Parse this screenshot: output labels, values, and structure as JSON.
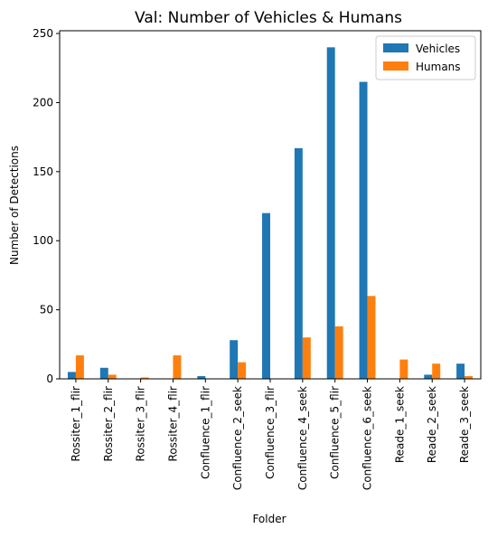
{
  "chart_data": {
    "type": "bar",
    "title": "Val: Number of Vehicles & Humans",
    "xlabel": "Folder",
    "ylabel": "Number of Detections",
    "categories": [
      "Rossiter_1_flir",
      "Rossiter_2_flir",
      "Rossiter_3_flir",
      "Rossiter_4_flir",
      "Confluence_1_flir",
      "Confluence_2_seek",
      "Confluence_3_flir",
      "Confluence_4_seek",
      "Confluence_5_flir",
      "Confluence_6_seek",
      "Reade_1_seek",
      "Reade_2_seek",
      "Reade_3_seek"
    ],
    "series": [
      {
        "name": "Vehicles",
        "color": "#1f77b4",
        "values": [
          5,
          8,
          0,
          0,
          2,
          28,
          120,
          167,
          240,
          215,
          0,
          3,
          11
        ]
      },
      {
        "name": "Humans",
        "color": "#ff7f0e",
        "values": [
          17,
          3,
          1,
          17,
          0,
          12,
          0,
          30,
          38,
          60,
          14,
          11,
          2
        ]
      }
    ],
    "ylim": [
      0,
      252
    ],
    "yticks": [
      0,
      50,
      100,
      150,
      200,
      250
    ],
    "grid": false,
    "legend_position": "top-right"
  }
}
